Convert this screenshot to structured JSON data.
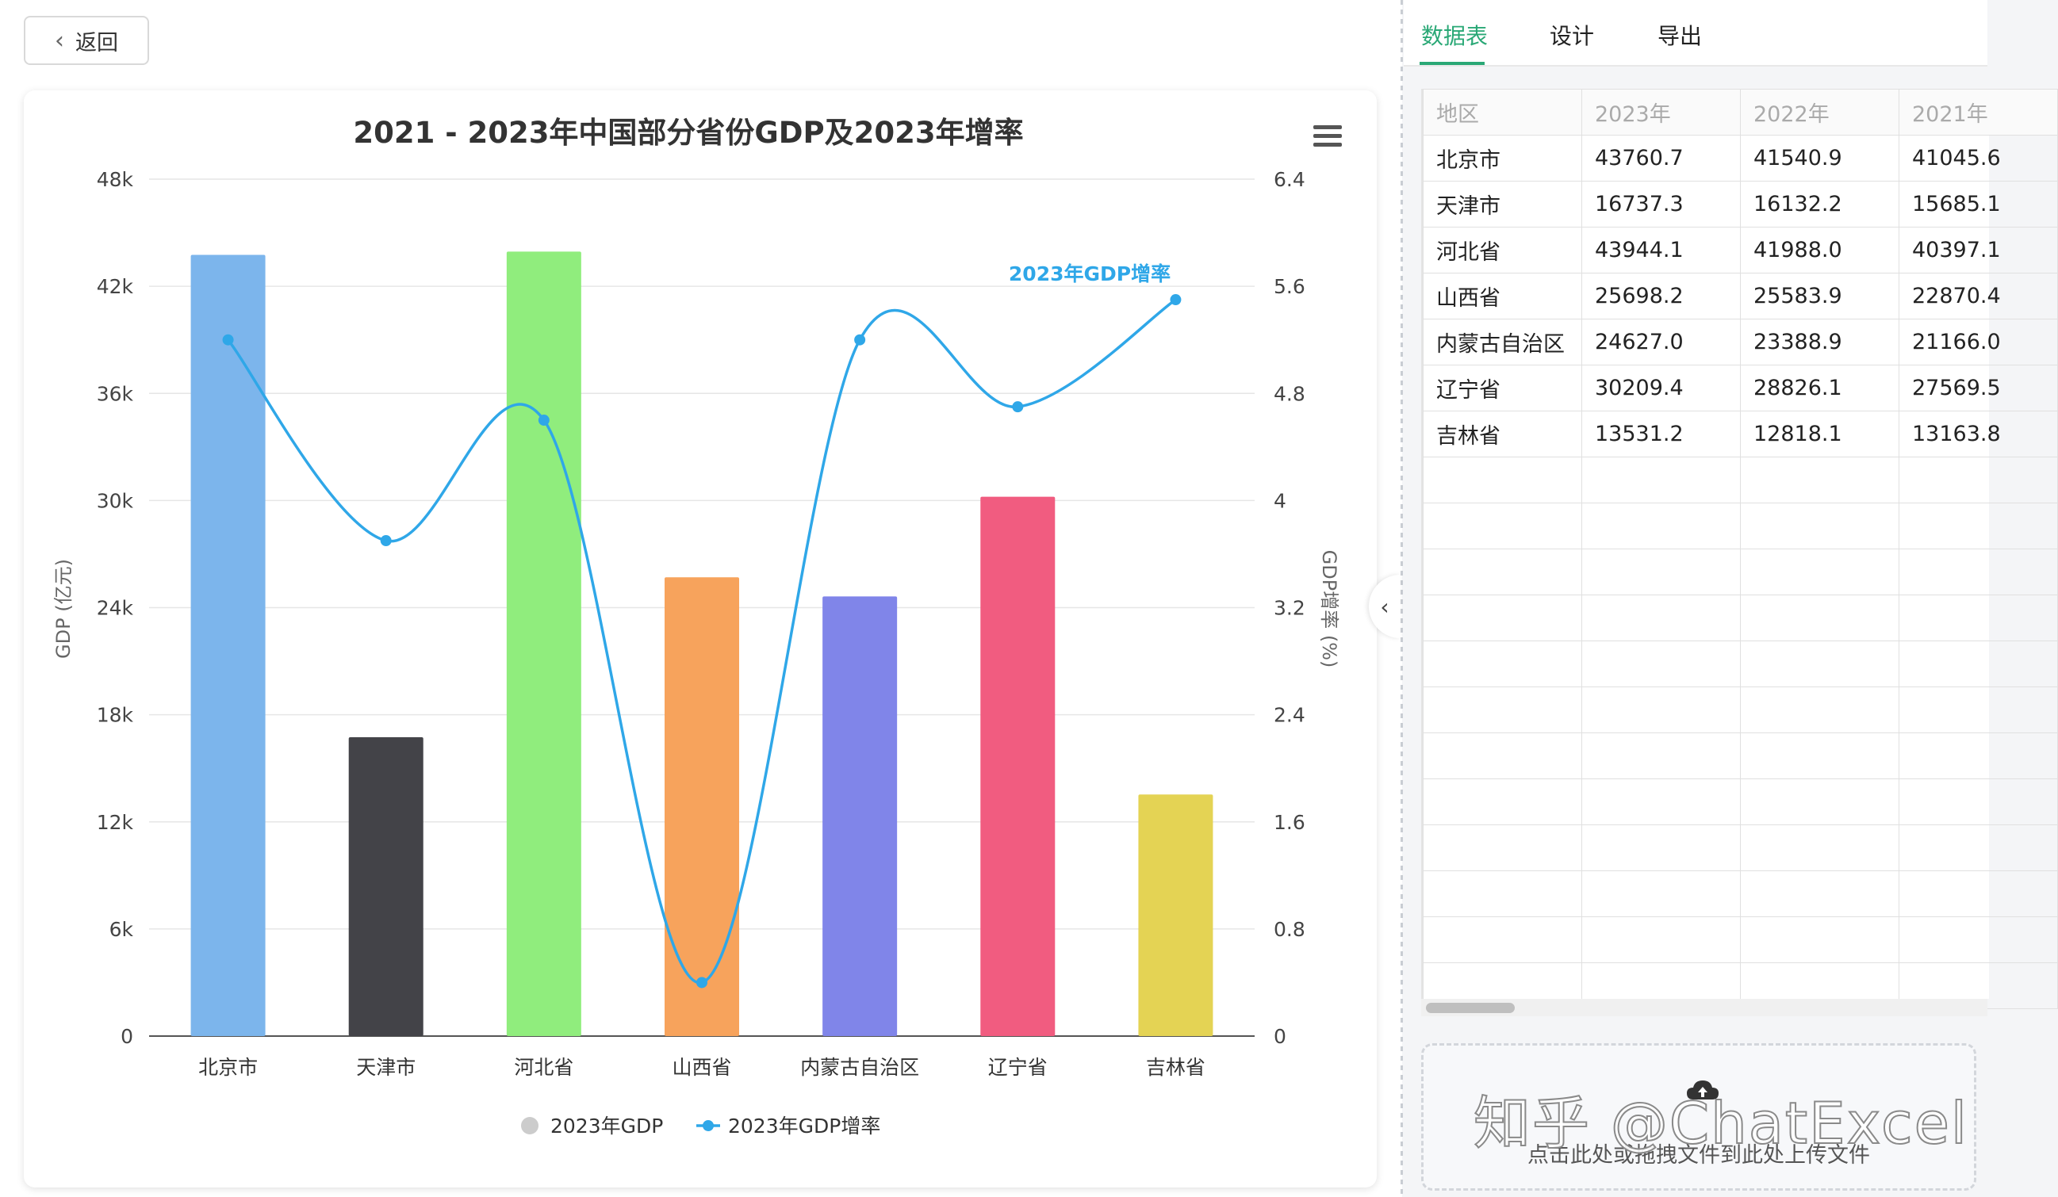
{
  "back_label": "返回",
  "tabs": [
    {
      "label": "数据表",
      "active": true
    },
    {
      "label": "设计",
      "active": false
    },
    {
      "label": "导出",
      "active": false
    }
  ],
  "table": {
    "headers": [
      "地区",
      "2023年",
      "2022年",
      "2021年"
    ],
    "rows": [
      [
        "北京市",
        "43760.7",
        "41540.9",
        "41045.6"
      ],
      [
        "天津市",
        "16737.3",
        "16132.2",
        "15685.1"
      ],
      [
        "河北省",
        "43944.1",
        "41988.0",
        "40397.1"
      ],
      [
        "山西省",
        "25698.2",
        "25583.9",
        "22870.4"
      ],
      [
        "内蒙古自治区",
        "24627.0",
        "23388.9",
        "21166.0"
      ],
      [
        "辽宁省",
        "30209.4",
        "28826.1",
        "27569.5"
      ],
      [
        "吉林省",
        "13531.2",
        "12818.1",
        "13163.8"
      ]
    ],
    "empty_rows": 12
  },
  "upload_hint": "点击此处或拖拽文件到此处上传文件",
  "watermark": "知乎 @ChatExcel",
  "chart_data": {
    "type": "bar",
    "title": "2021 - 2023年中国部分省份GDP及2023年增率",
    "categories": [
      "北京市",
      "天津市",
      "河北省",
      "山西省",
      "内蒙古自治区",
      "辽宁省",
      "吉林省"
    ],
    "series": [
      {
        "name": "2023年GDP",
        "type": "bar",
        "axis": "left",
        "values": [
          43760.7,
          16737.3,
          43944.1,
          25698.2,
          24627.0,
          30209.4,
          13531.2
        ],
        "colors": [
          "#7cb5ec",
          "#434348",
          "#90ed7d",
          "#f7a35c",
          "#8085e9",
          "#f15c80",
          "#e4d354"
        ]
      },
      {
        "name": "2023年GDP增率",
        "type": "line",
        "axis": "right",
        "values": [
          5.2,
          3.7,
          4.6,
          0.4,
          5.2,
          4.7,
          5.5
        ],
        "color": "#2fa7e8"
      }
    ],
    "ylabel_left": "GDP (亿元)",
    "ylabel_right": "GDP增率 (%)",
    "ylim_left": [
      0,
      48000
    ],
    "ylim_right": [
      0,
      6.4
    ],
    "yticks_left": [
      "0",
      "6k",
      "12k",
      "18k",
      "24k",
      "30k",
      "36k",
      "42k",
      "48k"
    ],
    "yticks_right": [
      "0",
      "0.8",
      "1.6",
      "2.4",
      "3.2",
      "4",
      "4.8",
      "5.6",
      "6.4"
    ],
    "series_label": "2023年GDP增率",
    "legend": "bottom-center",
    "legend_marker_color": "#cccccc",
    "grid": true
  }
}
